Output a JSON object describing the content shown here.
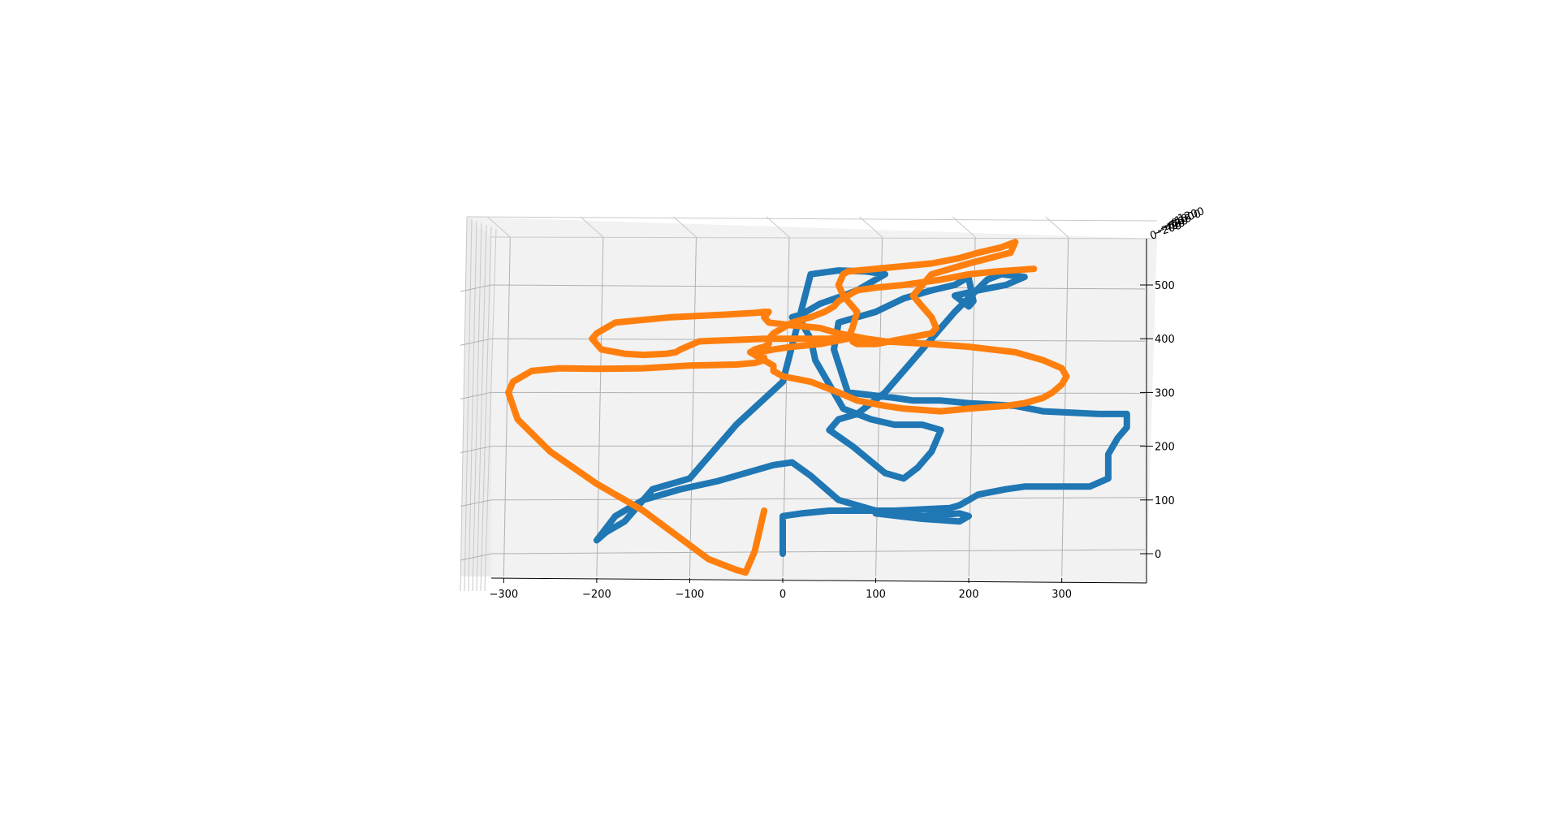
{
  "chart_data": {
    "type": "line",
    "projection": "3d",
    "grid": true,
    "pane_color": "#f2f2f2",
    "xlabel": "",
    "ylabel": "",
    "zlabel": "",
    "xlim": [
      -325,
      385
    ],
    "zlim": [
      -45,
      585
    ],
    "x_ticks": [
      -300,
      -200,
      -100,
      0,
      100,
      200,
      300
    ],
    "x_tick_labels": [
      "−300",
      "−200",
      "−100",
      "0",
      "100",
      "200",
      "300"
    ],
    "z_ticks": [
      0,
      100,
      200,
      300,
      400,
      500
    ],
    "z_tick_labels": [
      "0",
      "100",
      "200",
      "300",
      "400",
      "500"
    ],
    "depth_tick_labels": [
      "0",
      "−200",
      "−400",
      "−600",
      "−800",
      "−1000",
      "−1200"
    ],
    "series": [
      {
        "color": "#1f77b4",
        "x": [
          0,
          0,
          20,
          50,
          120,
          180,
          190,
          200,
          210,
          240,
          260,
          330,
          350,
          350,
          360,
          370,
          370,
          340,
          280,
          250,
          200,
          170,
          140,
          120,
          70,
          55,
          60,
          100,
          130,
          160,
          185,
          195,
          200,
          205,
          200,
          185,
          210,
          240,
          260,
          235,
          220,
          185,
          150,
          110,
          80,
          60,
          50,
          75,
          110,
          120,
          130,
          145,
          160,
          170,
          150,
          120,
          95,
          80,
          65,
          45,
          35,
          30,
          20,
          10,
          20,
          40,
          65,
          80,
          100,
          110,
          90,
          60,
          30,
          0,
          -50,
          -100,
          -140,
          -170,
          -190,
          -200,
          -180,
          -150,
          -110,
          -70,
          -40,
          -10,
          10,
          30,
          60,
          80,
          100,
          150,
          190,
          200,
          190,
          150,
          100
        ],
        "z": [
          0,
          70,
          75,
          80,
          80,
          85,
          90,
          100,
          110,
          120,
          125,
          125,
          140,
          185,
          215,
          235,
          260,
          260,
          265,
          275,
          280,
          285,
          285,
          290,
          300,
          380,
          430,
          450,
          475,
          490,
          500,
          510,
          512,
          470,
          460,
          480,
          490,
          500,
          515,
          520,
          510,
          450,
          380,
          300,
          260,
          250,
          230,
          200,
          150,
          145,
          140,
          160,
          190,
          230,
          240,
          240,
          250,
          260,
          270,
          330,
          360,
          400,
          430,
          440,
          445,
          465,
          480,
          490,
          510,
          520,
          525,
          527,
          520,
          320,
          240,
          140,
          120,
          60,
          40,
          25,
          70,
          100,
          120,
          135,
          150,
          165,
          170,
          145,
          100,
          90,
          80,
          70,
          75,
          70,
          60,
          65,
          75
        ]
      },
      {
        "color": "#ff7f0e",
        "x": [
          -20,
          -30,
          -40,
          -50,
          -80,
          -150,
          -200,
          -250,
          -285,
          -295,
          -290,
          -280,
          -270,
          -240,
          -200,
          -150,
          -100,
          -50,
          -30,
          -20,
          -20,
          -25,
          -25,
          -10,
          10,
          40,
          70,
          75,
          80,
          70,
          65,
          60,
          65,
          70,
          100,
          130,
          160,
          190,
          210,
          235,
          250,
          245,
          200,
          160,
          140,
          150,
          160,
          165,
          160,
          130,
          100,
          80,
          75,
          80,
          70,
          50,
          30,
          10,
          0,
          -10,
          -20,
          -90,
          -110,
          -115,
          -125,
          -150,
          -170,
          -195,
          -200,
          -205,
          -200,
          -180,
          -120,
          -60,
          -30,
          -20,
          -15,
          -20,
          -15,
          10,
          40,
          60,
          90,
          110,
          160,
          200,
          250,
          280,
          300,
          305,
          300,
          290,
          280,
          260,
          240,
          200,
          170,
          130,
          110,
          80,
          60,
          30,
          0,
          -10,
          -10,
          -20,
          -30,
          -35,
          -30,
          -20,
          -15,
          -15,
          -10,
          0,
          10,
          30,
          45,
          50,
          55,
          60,
          70,
          80,
          100,
          130,
          150,
          170,
          200,
          230,
          270,
          300,
          320
        ],
        "z": [
          80,
          5,
          -35,
          -30,
          -10,
          80,
          130,
          190,
          250,
          300,
          320,
          330,
          340,
          345,
          344,
          345,
          350,
          352,
          355,
          360,
          365,
          370,
          375,
          380,
          385,
          390,
          400,
          420,
          450,
          470,
          480,
          500,
          520,
          525,
          530,
          535,
          540,
          550,
          560,
          570,
          580,
          560,
          540,
          520,
          480,
          460,
          440,
          420,
          410,
          400,
          390,
          390,
          395,
          400,
          405,
          400,
          400,
          400,
          400,
          400,
          400,
          395,
          380,
          375,
          372,
          370,
          372,
          380,
          390,
          400,
          410,
          430,
          440,
          445,
          448,
          450,
          450,
          440,
          430,
          425,
          420,
          410,
          400,
          395,
          390,
          385,
          375,
          360,
          345,
          330,
          315,
          300,
          290,
          280,
          275,
          270,
          265,
          270,
          275,
          285,
          300,
          320,
          330,
          340,
          350,
          360,
          370,
          375,
          380,
          385,
          390,
          400,
          410,
          420,
          430,
          440,
          450,
          455,
          460,
          470,
          480,
          490,
          495,
          500,
          505,
          510,
          520,
          525,
          530
        ]
      }
    ]
  }
}
